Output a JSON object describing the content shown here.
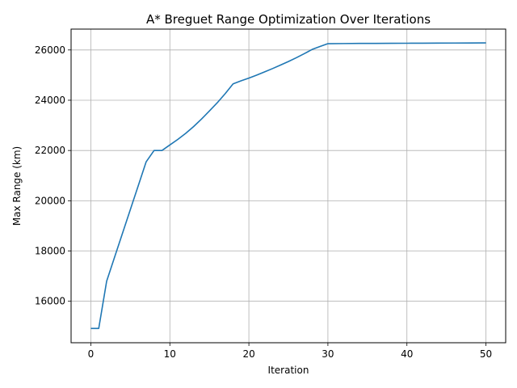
{
  "chart_data": {
    "type": "line",
    "title": "A* Breguet Range Optimization Over Iterations",
    "xlabel": "Iteration",
    "ylabel": "Max Range (km)",
    "xlim": [
      -2.5,
      52.5
    ],
    "ylim": [
      14350,
      26830
    ],
    "grid": true,
    "x_ticks": [
      0,
      10,
      20,
      30,
      40,
      50
    ],
    "y_ticks": [
      16000,
      18000,
      20000,
      22000,
      24000,
      26000
    ],
    "line_color": "#1f77b4",
    "series": [
      {
        "x": [
          0,
          1,
          2,
          3,
          4,
          5,
          6,
          7,
          8,
          9,
          10,
          11,
          12,
          13,
          14,
          15,
          16,
          17,
          18,
          19,
          20,
          21,
          22,
          23,
          24,
          25,
          26,
          27,
          28,
          29,
          30,
          32,
          34,
          36,
          38,
          40,
          42,
          44,
          46,
          48,
          50
        ],
        "values": [
          14920,
          14920,
          16800,
          17750,
          18700,
          19650,
          20600,
          21550,
          22000,
          22000,
          22220,
          22440,
          22680,
          22950,
          23250,
          23570,
          23900,
          24260,
          24650,
          24770,
          24880,
          25000,
          25130,
          25260,
          25400,
          25540,
          25690,
          25850,
          26020,
          26140,
          26250,
          26255,
          26260,
          26262,
          26265,
          26267,
          26270,
          26272,
          26275,
          26278,
          26280
        ]
      }
    ]
  }
}
